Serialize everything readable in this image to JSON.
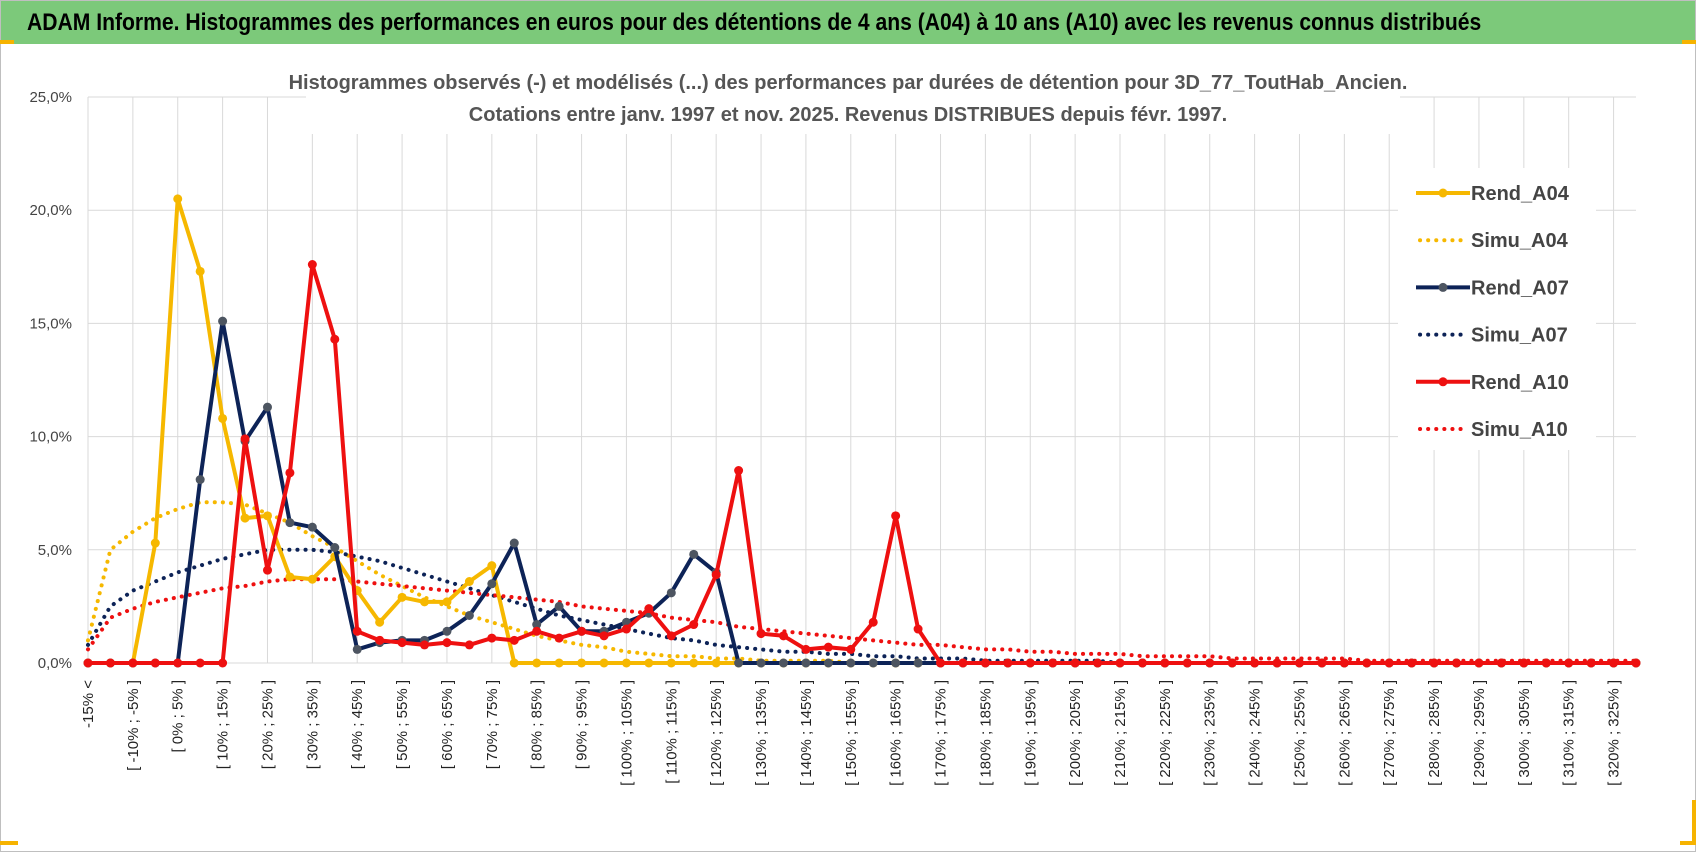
{
  "banner": {
    "title": "ADAM Informe. Histogrammes des performances en euros pour des détentions de 4 ans (A04) à 10 ans (A10) avec les revenus connus distribués"
  },
  "colors": {
    "banner_bg": "#7cc97a",
    "A04": "#f6b800",
    "A07": "#0d2357",
    "A07_marker": "#4d5561",
    "A10": "#ee1010",
    "gridline": "#d9d9d9"
  },
  "chart_data": {
    "type": "line",
    "title": "Histogrammes observés (-) et modélisés (...) des performances par durées de détention pour 3D_77_ToutHab_Ancien.",
    "subtitle": "Cotations entre janv. 1997 et nov. 2025. Revenus DISTRIBUES depuis févr. 1997.",
    "xlabel": "",
    "ylabel": "",
    "ylim": [
      0,
      0.25
    ],
    "yticks": [
      "0,0%",
      "5,0%",
      "10,0%",
      "15,0%",
      "20,0%",
      "25,0%"
    ],
    "grid": true,
    "legend_position": "right",
    "categories": [
      "-15% <",
      "[ -15% ; -10% ]",
      "[ -10% ; -5% ]",
      "[ -5% ; 0% ]",
      "[ 0% ; 5% ]",
      "[ 5% ; 10% ]",
      "[ 10% ; 15% ]",
      "[ 15% ; 20% ]",
      "[ 20% ; 25% ]",
      "[ 25% ; 30% ]",
      "[ 30% ; 35% ]",
      "[ 35% ; 40% ]",
      "[ 40% ; 45% ]",
      "[ 45% ; 50% ]",
      "[ 50% ; 55% ]",
      "[ 55% ; 60% ]",
      "[ 60% ; 65% ]",
      "[ 65% ; 70% ]",
      "[ 70% ; 75% ]",
      "[ 75% ; 80% ]",
      "[ 80% ; 85% ]",
      "[ 85% ; 90% ]",
      "[ 90% ; 95% ]",
      "[ 95% ; 100% ]",
      "[ 100% ; 105% ]",
      "[ 105% ; 110% ]",
      "[ 110% ; 115% ]",
      "[ 115% ; 120% ]",
      "[ 120% ; 125% ]",
      "[ 125% ; 130% ]",
      "[ 130% ; 135% ]",
      "[ 135% ; 140% ]",
      "[ 140% ; 145% ]",
      "[ 145% ; 150% ]",
      "[ 150% ; 155% ]",
      "[ 155% ; 160% ]",
      "[ 160% ; 165% ]",
      "[ 165% ; 170% ]",
      "[ 170% ; 175% ]",
      "[ 175% ; 180% ]",
      "[ 180% ; 185% ]",
      "[ 185% ; 190% ]",
      "[ 190% ; 195% ]",
      "[ 195% ; 200% ]",
      "[ 200% ; 205% ]",
      "[ 205% ; 210% ]",
      "[ 210% ; 215% ]",
      "[ 215% ; 220% ]",
      "[ 220% ; 225% ]",
      "[ 225% ; 230% ]",
      "[ 230% ; 235% ]",
      "[ 235% ; 240% ]",
      "[ 240% ; 245% ]",
      "[ 245% ; 250% ]",
      "[ 250% ; 255% ]",
      "[ 255% ; 260% ]",
      "[ 260% ; 265% ]",
      "[ 265% ; 270% ]",
      "[ 270% ; 275% ]",
      "[ 275% ; 280% ]",
      "[ 280% ; 285% ]",
      "[ 285% ; 290% ]",
      "[ 290% ; 295% ]",
      "[ 295% ; 300% ]",
      "[ 300% ; 305% ]",
      "[ 305% ; 310% ]",
      "[ 310% ; 315% ]",
      "[ 315% ; 320% ]",
      "[ 320% ; 325% ]",
      "[ 325% ; 330% ]"
    ],
    "visible_tick_labels": [
      "-15% <",
      "[ -10% ; -5% ]",
      "[ 0% ; 5% ]",
      "[ 10% ; 15% ]",
      "[ 20% ; 25% ]",
      "[ 30% ; 35% ]",
      "[ 40% ; 45% ]",
      "[ 50% ; 55% ]",
      "[ 60% ; 65% ]",
      "[ 70% ; 75% ]",
      "[ 80% ; 85% ]",
      "[ 90% ; 95% ]",
      "[ 100% ; 105% ]",
      "[ 110% ; 115% ]",
      "[ 120% ; 125% ]",
      "[ 130% ; 135% ]",
      "[ 140% ; 145% ]",
      "[ 150% ; 155% ]",
      "[ 160% ; 165% ]",
      "[ 170% ; 175% ]",
      "[ 180% ; 185% ]",
      "[ 190% ; 195% ]",
      "[ 200% ; 205% ]",
      "[ 210% ; 215% ]",
      "[ 220% ; 225% ]",
      "[ 230% ; 235% ]",
      "[ 240% ; 245% ]",
      "[ 250% ; 255% ]",
      "[ 260% ; 265% ]",
      "[ 270% ; 275% ]",
      "[ 280% ; 285% ]",
      "[ 290% ; 295% ]",
      "[ 300% ; 305% ]",
      "[ 310% ; 315% ]",
      "[ 320% ; 325% ]"
    ],
    "series": [
      {
        "name": "Rend_A04",
        "style": "solid",
        "color": "#f6b800",
        "values": [
          0.0,
          0.0,
          0.0,
          0.053,
          0.205,
          0.173,
          0.108,
          0.064,
          0.065,
          0.038,
          0.037,
          0.047,
          0.032,
          0.018,
          0.029,
          0.027,
          0.027,
          0.036,
          0.043,
          0.0,
          0.0,
          0.0,
          0.0,
          0.0,
          0.0,
          0.0,
          0.0,
          0.0,
          0.0,
          0.0,
          0.0,
          0.0,
          0.0,
          0.0,
          0.0,
          0.0,
          0.0,
          0.0,
          0.0,
          0.0,
          0.0,
          0.0,
          0.0,
          0.0,
          0.0,
          0.0,
          0.0,
          0.0,
          0.0,
          0.0,
          0.0,
          0.0,
          0.0,
          0.0,
          0.0,
          0.0,
          0.0,
          0.0,
          0.0,
          0.0,
          0.0,
          0.0,
          0.0,
          0.0,
          0.0,
          0.0,
          0.0,
          0.0,
          0.0,
          0.0
        ]
      },
      {
        "name": "Simu_A04",
        "style": "dotted",
        "color": "#f6b800",
        "values": [
          0.01,
          0.05,
          0.058,
          0.064,
          0.068,
          0.071,
          0.071,
          0.07,
          0.066,
          0.062,
          0.056,
          0.051,
          0.045,
          0.039,
          0.034,
          0.029,
          0.025,
          0.021,
          0.018,
          0.015,
          0.012,
          0.01,
          0.008,
          0.007,
          0.005,
          0.004,
          0.003,
          0.003,
          0.002,
          0.002,
          0.001,
          0.001,
          0.001,
          0.001,
          0.0,
          0.0,
          0.0,
          0.0,
          0.0,
          0.0,
          0.0,
          0.0,
          0.0,
          0.0,
          0.0,
          0.0,
          0.0,
          0.0,
          0.0,
          0.0,
          0.0,
          0.0,
          0.0,
          0.0,
          0.0,
          0.0,
          0.0,
          0.0,
          0.0,
          0.0,
          0.0,
          0.0,
          0.0,
          0.0,
          0.0,
          0.0,
          0.0,
          0.0,
          0.0,
          0.0
        ]
      },
      {
        "name": "Rend_A07",
        "style": "solid",
        "color": "#0d2357",
        "values": [
          0.0,
          0.0,
          0.0,
          0.0,
          0.0,
          0.081,
          0.151,
          0.098,
          0.113,
          0.062,
          0.06,
          0.051,
          0.006,
          0.009,
          0.01,
          0.01,
          0.014,
          0.021,
          0.035,
          0.053,
          0.017,
          0.025,
          0.014,
          0.014,
          0.018,
          0.022,
          0.031,
          0.048,
          0.04,
          0.0,
          0.0,
          0.0,
          0.0,
          0.0,
          0.0,
          0.0,
          0.0,
          0.0,
          0.0,
          0.0,
          0.0,
          0.0,
          0.0,
          0.0,
          0.0,
          0.0,
          0.0,
          0.0,
          0.0,
          0.0,
          0.0,
          0.0,
          0.0,
          0.0,
          0.0,
          0.0,
          0.0,
          0.0,
          0.0,
          0.0,
          0.0,
          0.0,
          0.0,
          0.0,
          0.0,
          0.0,
          0.0,
          0.0,
          0.0,
          0.0
        ]
      },
      {
        "name": "Simu_A07",
        "style": "dotted",
        "color": "#0d2357",
        "values": [
          0.008,
          0.025,
          0.032,
          0.036,
          0.04,
          0.043,
          0.046,
          0.048,
          0.05,
          0.05,
          0.05,
          0.049,
          0.047,
          0.045,
          0.042,
          0.039,
          0.036,
          0.033,
          0.03,
          0.027,
          0.024,
          0.021,
          0.019,
          0.017,
          0.015,
          0.013,
          0.011,
          0.01,
          0.008,
          0.007,
          0.006,
          0.005,
          0.005,
          0.004,
          0.004,
          0.003,
          0.003,
          0.002,
          0.002,
          0.002,
          0.001,
          0.001,
          0.001,
          0.001,
          0.001,
          0.001,
          0.0,
          0.0,
          0.0,
          0.0,
          0.0,
          0.0,
          0.0,
          0.0,
          0.0,
          0.0,
          0.0,
          0.0,
          0.0,
          0.0,
          0.0,
          0.0,
          0.0,
          0.0,
          0.0,
          0.0,
          0.0,
          0.0,
          0.0,
          0.0
        ]
      },
      {
        "name": "Rend_A10",
        "style": "solid",
        "color": "#ee1010",
        "values": [
          0.0,
          0.0,
          0.0,
          0.0,
          0.0,
          0.0,
          0.0,
          0.099,
          0.041,
          0.084,
          0.176,
          0.143,
          0.014,
          0.01,
          0.009,
          0.008,
          0.009,
          0.008,
          0.011,
          0.01,
          0.014,
          0.011,
          0.014,
          0.012,
          0.015,
          0.024,
          0.012,
          0.017,
          0.039,
          0.085,
          0.013,
          0.012,
          0.006,
          0.007,
          0.006,
          0.018,
          0.065,
          0.015,
          0.0,
          0.0,
          0.0,
          0.0,
          0.0,
          0.0,
          0.0,
          0.0,
          0.0,
          0.0,
          0.0,
          0.0,
          0.0,
          0.0,
          0.0,
          0.0,
          0.0,
          0.0,
          0.0,
          0.0,
          0.0,
          0.0,
          0.0,
          0.0,
          0.0,
          0.0,
          0.0,
          0.0,
          0.0,
          0.0,
          0.0,
          0.0
        ]
      },
      {
        "name": "Simu_A10",
        "style": "dotted",
        "color": "#ee1010",
        "values": [
          0.006,
          0.02,
          0.024,
          0.027,
          0.029,
          0.031,
          0.033,
          0.034,
          0.036,
          0.037,
          0.037,
          0.037,
          0.036,
          0.035,
          0.034,
          0.033,
          0.032,
          0.031,
          0.03,
          0.029,
          0.028,
          0.027,
          0.025,
          0.024,
          0.023,
          0.022,
          0.02,
          0.019,
          0.018,
          0.016,
          0.015,
          0.014,
          0.013,
          0.012,
          0.011,
          0.01,
          0.009,
          0.008,
          0.008,
          0.007,
          0.006,
          0.006,
          0.005,
          0.005,
          0.004,
          0.004,
          0.004,
          0.003,
          0.003,
          0.003,
          0.003,
          0.002,
          0.002,
          0.002,
          0.002,
          0.002,
          0.002,
          0.001,
          0.001,
          0.001,
          0.001,
          0.001,
          0.001,
          0.001,
          0.001,
          0.001,
          0.001,
          0.001,
          0.001,
          0.001
        ]
      }
    ]
  }
}
